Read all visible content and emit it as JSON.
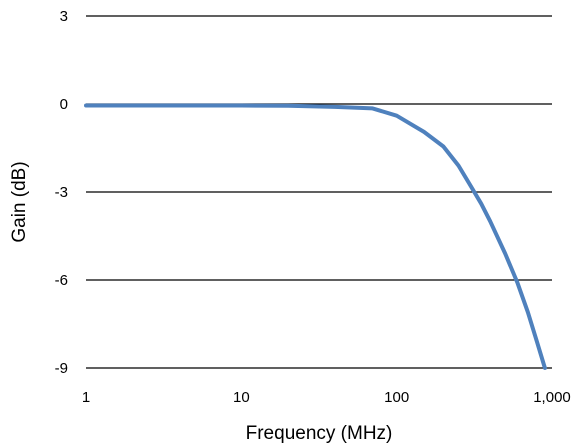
{
  "chart_data": {
    "type": "line",
    "title": "",
    "xlabel": "Frequency (MHz)",
    "ylabel": "Gain (dB)",
    "x_scale": "log",
    "xlim": [
      1,
      1000
    ],
    "ylim": [
      -9,
      3
    ],
    "x_ticks": [
      1,
      10,
      100,
      1000
    ],
    "x_tick_labels": [
      "1",
      "10",
      "100",
      "1,000"
    ],
    "y_ticks": [
      3,
      0,
      -3,
      -6,
      -9
    ],
    "y_tick_labels": [
      "3",
      "0",
      "-3",
      "-6",
      "-9"
    ],
    "grid": "horizontal",
    "legend": "none",
    "series_color": "#4f81bd",
    "series": [
      {
        "x": [
          1,
          5,
          10,
          20,
          40,
          70,
          100,
          150,
          200,
          250,
          300,
          350,
          400,
          500,
          600,
          700,
          800,
          900
        ],
        "y": [
          -0.05,
          -0.05,
          -0.05,
          -0.06,
          -0.1,
          -0.15,
          -0.4,
          -0.95,
          -1.45,
          -2.1,
          -2.8,
          -3.4,
          -4.0,
          -5.1,
          -6.1,
          -7.1,
          -8.1,
          -9.0
        ]
      }
    ]
  }
}
